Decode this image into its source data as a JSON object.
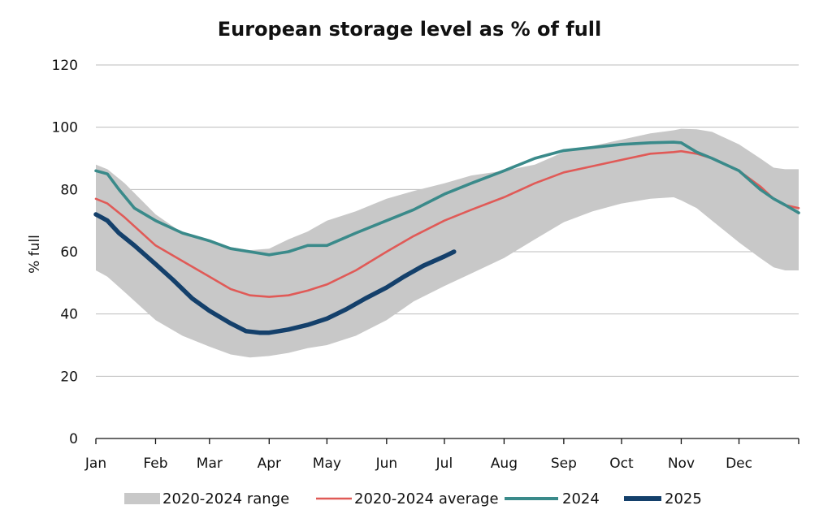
{
  "chart_data": {
    "type": "line",
    "title": "European storage level as % of full",
    "xlabel": "",
    "ylabel": "% full",
    "ylim": [
      0,
      120
    ],
    "yticks": [
      0,
      20,
      40,
      60,
      80,
      100,
      120
    ],
    "xlim": [
      0,
      365
    ],
    "x_tick_labels": [
      "Jan",
      "Feb",
      "Mar",
      "Apr",
      "May",
      "Jun",
      "Jul",
      "Aug",
      "Sep",
      "Oct",
      "Nov",
      "Dec"
    ],
    "x_tick_days": [
      0,
      31,
      59,
      90,
      120,
      151,
      181,
      212,
      243,
      273,
      304,
      334
    ],
    "grid": "horizontal",
    "legend_position": "bottom",
    "colors": {
      "range": "#c8c8c8",
      "average": "#e05a57",
      "y2024": "#3a8a8a",
      "y2025": "#14406b"
    },
    "series": [
      {
        "name": "2020-2024 range",
        "kind": "band",
        "x": [
          0,
          6,
          15,
          31,
          45,
          59,
          70,
          80,
          90,
          100,
          110,
          120,
          135,
          151,
          165,
          181,
          195,
          212,
          228,
          243,
          258,
          273,
          288,
          300,
          304,
          312,
          320,
          334,
          345,
          352,
          358,
          365
        ],
        "low": [
          54,
          52,
          47,
          38,
          33,
          29.5,
          27,
          26,
          26.5,
          27.5,
          29,
          30,
          33,
          38,
          44,
          49,
          53,
          58,
          64,
          69.5,
          73,
          75.5,
          77,
          77.5,
          76.5,
          74,
          70,
          63,
          58,
          55,
          54,
          54
        ],
        "high": [
          88,
          86.5,
          82,
          72,
          66,
          63,
          61.5,
          60.5,
          61,
          64,
          66.5,
          70,
          73,
          77,
          79.5,
          82,
          84.5,
          86,
          88,
          92,
          94,
          96,
          98,
          99,
          99.5,
          99.3,
          98.5,
          94.5,
          90,
          87,
          86.5,
          86.5
        ]
      },
      {
        "name": "2020-2024 average",
        "kind": "line",
        "x": [
          0,
          6,
          15,
          31,
          45,
          59,
          70,
          80,
          90,
          100,
          110,
          120,
          135,
          151,
          165,
          181,
          195,
          212,
          228,
          243,
          258,
          273,
          288,
          300,
          304,
          312,
          320,
          334,
          345,
          352,
          358,
          365
        ],
        "values": [
          77,
          75.5,
          71,
          62,
          57,
          52,
          48,
          46,
          45.5,
          46,
          47.5,
          49.5,
          54,
          60,
          65,
          70,
          73.5,
          77.5,
          82,
          85.5,
          87.5,
          89.5,
          91.5,
          92,
          92.3,
          91.5,
          90,
          86,
          81,
          77,
          75,
          74
        ]
      },
      {
        "name": "2024",
        "kind": "line",
        "x": [
          0,
          6,
          12,
          20,
          31,
          45,
          59,
          70,
          80,
          90,
          95,
          100,
          110,
          120,
          135,
          151,
          165,
          181,
          195,
          212,
          228,
          243,
          258,
          273,
          288,
          300,
          304,
          312,
          320,
          334,
          345,
          352,
          358,
          365
        ],
        "values": [
          86,
          85,
          80,
          74,
          70,
          66,
          63.5,
          61,
          60,
          59,
          59.5,
          60,
          62,
          62,
          66,
          70,
          73.5,
          78.5,
          82,
          86,
          90,
          92.5,
          93.5,
          94.5,
          95,
          95.2,
          95,
          92,
          90,
          86,
          80,
          77,
          75,
          72.5
        ]
      },
      {
        "name": "2025",
        "kind": "line",
        "x": [
          0,
          6,
          12,
          20,
          31,
          40,
          50,
          59,
          70,
          78,
          85,
          90,
          95,
          100,
          110,
          120,
          130,
          140,
          151,
          160,
          170,
          181,
          186
        ],
        "values": [
          72,
          70,
          66,
          62,
          56,
          51,
          45,
          41,
          37,
          34.5,
          34,
          34,
          34.5,
          35,
          36.5,
          38.5,
          41.5,
          45,
          48.5,
          52,
          55.5,
          58.5,
          60
        ]
      }
    ]
  },
  "legend": [
    {
      "label": "2020-2024 range",
      "style": "band"
    },
    {
      "label": "2020-2024 average",
      "style": "avg"
    },
    {
      "label": "2024",
      "style": "y2024"
    },
    {
      "label": "2025",
      "style": "y2025"
    }
  ]
}
